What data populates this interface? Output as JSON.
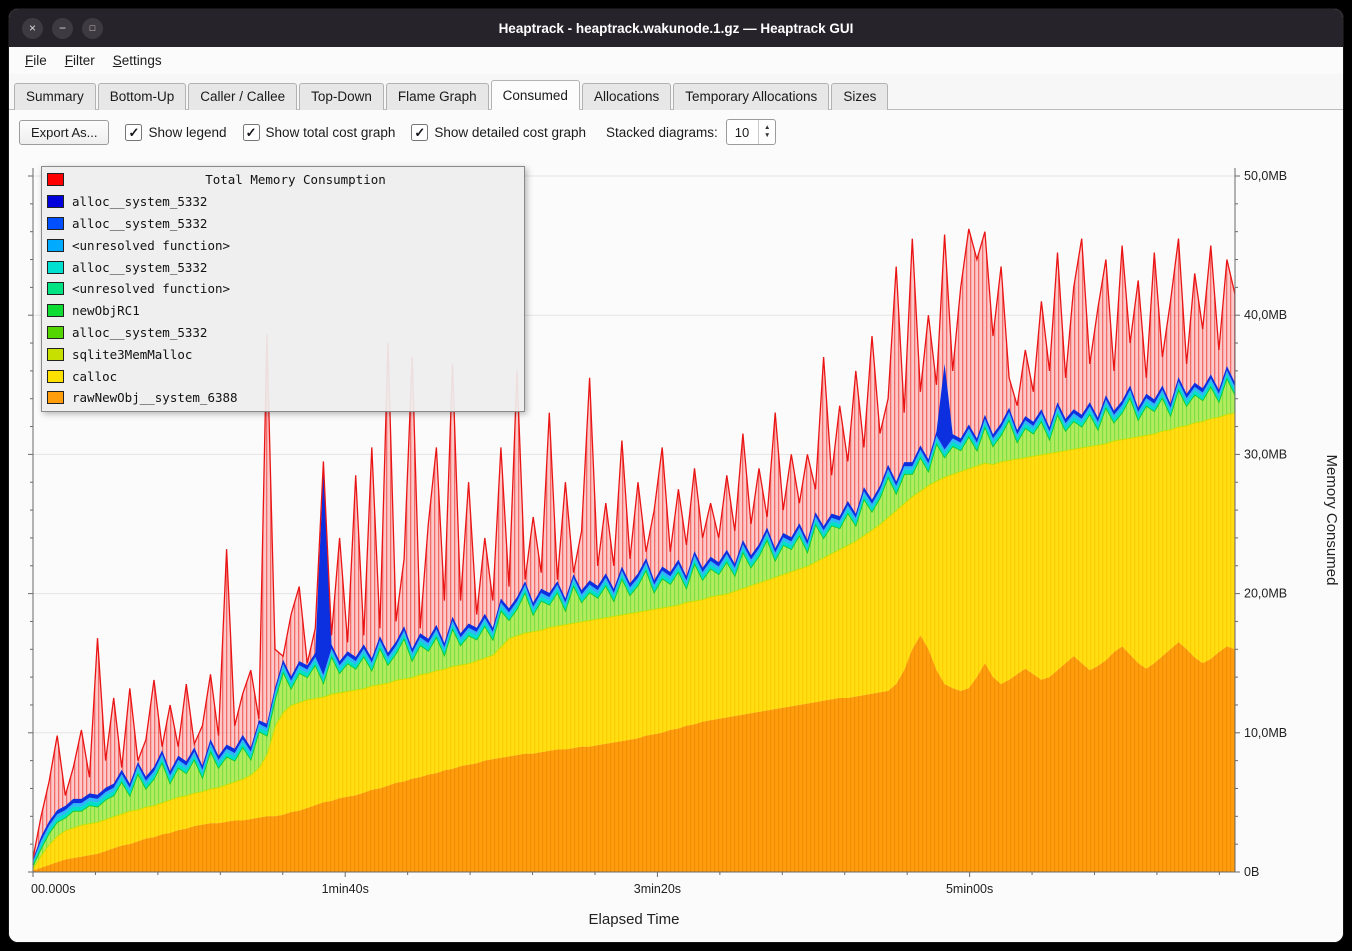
{
  "window": {
    "title": "Heaptrack - heaptrack.wakunode.1.gz — Heaptrack GUI",
    "controls": {
      "close": "×",
      "minimize": "−",
      "maximize": "□"
    }
  },
  "menubar": {
    "items": [
      {
        "label": "File"
      },
      {
        "label": "Filter"
      },
      {
        "label": "Settings"
      }
    ]
  },
  "tabs": {
    "items": [
      "Summary",
      "Bottom-Up",
      "Caller / Callee",
      "Top-Down",
      "Flame Graph",
      "Consumed",
      "Allocations",
      "Temporary Allocations",
      "Sizes"
    ],
    "active": "Consumed"
  },
  "toolbar": {
    "export_label": "Export As...",
    "checkboxes": [
      {
        "label": "Show legend",
        "checked": true
      },
      {
        "label": "Show total cost graph",
        "checked": true
      },
      {
        "label": "Show detailed cost graph",
        "checked": true
      }
    ],
    "stacked_label": "Stacked diagrams:",
    "stacked_value": "10"
  },
  "chart_data": {
    "type": "area",
    "legend_title": "Total Memory Consumption",
    "xlabel": "Elapsed Time",
    "ylabel": "Memory Consumed",
    "ylim": [
      0,
      50
    ],
    "duration_s": 385,
    "x_ticks": [
      {
        "t": 0,
        "label": "00.000s"
      },
      {
        "t": 100,
        "label": "1min40s"
      },
      {
        "t": 200,
        "label": "3min20s"
      },
      {
        "t": 300,
        "label": "5min00s"
      }
    ],
    "y_ticks": [
      {
        "v": 0,
        "label": "0B"
      },
      {
        "v": 10,
        "label": "10,0MB"
      },
      {
        "v": 20,
        "label": "20,0MB"
      },
      {
        "v": 30,
        "label": "30,0MB"
      },
      {
        "v": 40,
        "label": "40,0MB"
      },
      {
        "v": 50,
        "label": "50,0MB"
      }
    ],
    "legend": [
      {
        "label": "alloc__system_5332",
        "color": "#0000dc"
      },
      {
        "label": "alloc__system_5332",
        "color": "#0050ff"
      },
      {
        "label": "<unresolved function>",
        "color": "#00aaff"
      },
      {
        "label": "alloc__system_5332",
        "color": "#00e0d0"
      },
      {
        "label": "<unresolved function>",
        "color": "#00e382"
      },
      {
        "label": "newObjRC1",
        "color": "#0fdc32"
      },
      {
        "label": "alloc__system_5332",
        "color": "#52d500"
      },
      {
        "label": "sqlite3MemMalloc",
        "color": "#c8e000"
      },
      {
        "label": "calloc",
        "color": "#ffe100"
      },
      {
        "label": "rawNewObj__system_6388",
        "color": "#ff9d0c"
      }
    ],
    "colors": {
      "total": "#ff0000",
      "orange": "#ff9d0c",
      "yellow": "#ffdf0f",
      "sqlite_line": "#c8e000",
      "green": "#b2ec5e",
      "green_line": "#12c822",
      "cyan": "#00dfc8",
      "lightblue": "#2bb7ff",
      "blue": "#0c2fe0"
    },
    "blue_spikes": [
      {
        "i": 36,
        "v": 29.0
      },
      {
        "i": 113,
        "v": 36.5
      }
    ],
    "series": [
      {
        "name": "rawNewObj__system_6388",
        "role": "orange_top",
        "values": [
          0.1,
          0.3,
          0.5,
          0.7,
          0.9,
          1.0,
          1.1,
          1.2,
          1.3,
          1.5,
          1.7,
          1.9,
          2.0,
          2.2,
          2.4,
          2.5,
          2.7,
          2.8,
          3.0,
          3.1,
          3.3,
          3.4,
          3.5,
          3.5,
          3.6,
          3.7,
          3.7,
          3.8,
          3.9,
          4.0,
          4.0,
          4.1,
          4.3,
          4.4,
          4.6,
          4.8,
          5.0,
          5.1,
          5.3,
          5.4,
          5.5,
          5.7,
          5.9,
          6.0,
          6.2,
          6.4,
          6.5,
          6.7,
          6.8,
          7.0,
          7.1,
          7.3,
          7.4,
          7.6,
          7.7,
          7.8,
          8.0,
          8.1,
          8.2,
          8.3,
          8.4,
          8.5,
          8.5,
          8.6,
          8.7,
          8.8,
          8.8,
          8.9,
          9.0,
          9.0,
          9.1,
          9.2,
          9.3,
          9.4,
          9.5,
          9.6,
          9.8,
          9.9,
          10.0,
          10.2,
          10.3,
          10.5,
          10.6,
          10.8,
          10.9,
          11.0,
          11.1,
          11.2,
          11.3,
          11.4,
          11.5,
          11.6,
          11.7,
          11.8,
          11.9,
          12.0,
          12.1,
          12.2,
          12.3,
          12.4,
          12.5,
          12.5,
          12.6,
          12.7,
          12.8,
          12.9,
          13.0,
          13.5,
          14.5,
          16.0,
          17.0,
          16.0,
          14.5,
          13.5,
          13.2,
          13.0,
          13.2,
          14.0,
          15.0,
          14.0,
          13.5,
          13.8,
          14.2,
          14.6,
          14.2,
          13.8,
          14.0,
          14.5,
          15.0,
          15.5,
          15.0,
          14.5,
          14.8,
          15.2,
          15.8,
          16.2,
          15.6,
          15.0,
          14.6,
          15.0,
          15.5,
          16.0,
          16.5,
          16.0,
          15.4,
          15.0,
          15.3,
          15.8,
          16.2,
          16.0
        ]
      },
      {
        "name": "calloc",
        "role": "yellow_top",
        "values": [
          0.3,
          1.2,
          2.0,
          2.6,
          3.0,
          3.2,
          3.4,
          3.5,
          3.6,
          3.8,
          4.0,
          4.2,
          4.4,
          4.5,
          4.7,
          4.8,
          5.0,
          5.2,
          5.4,
          5.5,
          5.7,
          5.8,
          6.0,
          6.1,
          6.3,
          6.5,
          6.7,
          7.0,
          7.5,
          8.5,
          10.5,
          11.5,
          12.0,
          12.2,
          12.4,
          12.5,
          12.6,
          12.8,
          12.9,
          13.0,
          13.1,
          13.2,
          13.4,
          13.5,
          13.6,
          13.8,
          13.9,
          14.0,
          14.2,
          14.3,
          14.5,
          14.6,
          14.8,
          14.9,
          15.0,
          15.2,
          15.4,
          15.6,
          16.2,
          16.8,
          17.0,
          17.2,
          17.3,
          17.4,
          17.6,
          17.7,
          17.8,
          17.9,
          18.0,
          18.1,
          18.2,
          18.3,
          18.4,
          18.5,
          18.6,
          18.7,
          18.8,
          18.9,
          19.0,
          19.1,
          19.2,
          19.4,
          19.5,
          19.6,
          19.8,
          19.9,
          20.0,
          20.2,
          20.4,
          20.6,
          20.8,
          21.0,
          21.2,
          21.4,
          21.6,
          21.8,
          22.0,
          22.3,
          22.6,
          22.9,
          23.2,
          23.5,
          23.8,
          24.2,
          24.6,
          25.0,
          25.5,
          26.0,
          26.5,
          27.0,
          27.4,
          27.8,
          28.1,
          28.4,
          28.6,
          28.8,
          29.0,
          29.2,
          29.4,
          29.3,
          29.5,
          29.6,
          29.7,
          29.8,
          29.9,
          30.0,
          30.1,
          30.2,
          30.3,
          30.4,
          30.5,
          30.6,
          30.7,
          30.8,
          31.0,
          31.1,
          31.2,
          31.3,
          31.4,
          31.5,
          31.7,
          31.8,
          32.0,
          32.1,
          32.3,
          32.4,
          32.6,
          32.7,
          32.9,
          33.0
        ]
      },
      {
        "name": "newObjRC1 + green allocators (band thickness)",
        "role": "green_band",
        "values": [
          0.2,
          0.5,
          0.8,
          1.0,
          0.9,
          1.2,
          1.0,
          1.3,
          1.1,
          1.4,
          1.5,
          2.3,
          1.1,
          2.6,
          1.3,
          1.9,
          2.9,
          1.2,
          2.1,
          1.6,
          2.4,
          1.0,
          2.7,
          1.4,
          2.0,
          1.5,
          2.3,
          1.1,
          2.6,
          1.3,
          1.9,
          2.9,
          1.2,
          2.1,
          1.6,
          2.4,
          1.0,
          2.7,
          1.4,
          2.0,
          1.5,
          2.3,
          1.1,
          2.6,
          1.3,
          1.9,
          2.9,
          1.2,
          2.1,
          1.6,
          2.4,
          1.0,
          2.7,
          1.4,
          2.0,
          1.5,
          2.3,
          1.1,
          2.6,
          1.3,
          1.9,
          2.9,
          1.2,
          2.1,
          1.6,
          2.4,
          1.0,
          2.7,
          1.4,
          2.0,
          1.5,
          2.3,
          1.1,
          2.6,
          1.3,
          1.9,
          2.9,
          1.2,
          2.1,
          1.6,
          2.4,
          1.0,
          2.7,
          1.4,
          2.0,
          1.5,
          2.3,
          1.1,
          2.6,
          1.3,
          1.9,
          2.9,
          1.2,
          2.1,
          1.6,
          2.4,
          1.0,
          2.7,
          1.4,
          2.0,
          1.5,
          2.3,
          1.1,
          2.6,
          1.3,
          1.9,
          2.9,
          1.2,
          2.1,
          1.6,
          2.4,
          1.0,
          2.7,
          1.4,
          2.0,
          1.5,
          2.3,
          1.1,
          2.6,
          1.3,
          1.9,
          2.9,
          1.2,
          2.1,
          1.6,
          2.4,
          1.0,
          2.7,
          1.4,
          2.0,
          1.5,
          2.3,
          1.1,
          2.6,
          1.3,
          1.9,
          2.9,
          1.2,
          2.1,
          1.6,
          2.4,
          1.0,
          2.7,
          1.4,
          2.0,
          1.5,
          2.3,
          1.1,
          2.6,
          1.3
        ]
      },
      {
        "name": "Total Memory Consumption",
        "role": "total",
        "values": [
          1.0,
          4.0,
          6.5,
          9.8,
          5.5,
          7.5,
          10.2,
          6.8,
          16.8,
          8.0,
          12.5,
          7.5,
          13.2,
          8.0,
          9.5,
          13.8,
          9.0,
          12.0,
          9.0,
          13.5,
          9.2,
          10.5,
          14.2,
          9.8,
          23.2,
          10.5,
          12.8,
          14.5,
          11.0,
          38.6,
          16.0,
          15.5,
          18.5,
          20.5,
          15.0,
          17.5,
          29.5,
          17.0,
          24.0,
          16.5,
          28.5,
          17.0,
          30.5,
          17.5,
          38.0,
          18.0,
          22.5,
          37.0,
          17.5,
          25.0,
          30.5,
          19.5,
          36.5,
          19.5,
          28.0,
          18.5,
          24.0,
          19.5,
          30.5,
          20.5,
          36.0,
          21.0,
          25.5,
          21.5,
          33.0,
          21.0,
          28.0,
          21.5,
          24.5,
          35.5,
          22.0,
          26.5,
          22.0,
          31.0,
          22.5,
          28.0,
          23.0,
          26.0,
          30.5,
          23.0,
          27.5,
          23.5,
          29.0,
          24.0,
          26.5,
          24.0,
          28.5,
          24.5,
          31.5,
          25.0,
          29.0,
          25.5,
          33.0,
          26.0,
          30.0,
          26.5,
          30.0,
          27.5,
          37.0,
          28.5,
          33.5,
          29.5,
          36.0,
          30.5,
          38.5,
          31.5,
          34.0,
          43.5,
          33.0,
          45.5,
          34.5,
          40.0,
          35.0,
          45.8,
          36.0,
          42.0,
          46.2,
          44.0,
          46.0,
          38.5,
          43.5,
          35.5,
          33.5,
          37.5,
          34.5,
          41.0,
          36.0,
          44.5,
          35.5,
          42.0,
          45.5,
          36.5,
          40.5,
          44.0,
          36.0,
          45.0,
          38.0,
          42.5,
          35.5,
          44.5,
          37.0,
          41.0,
          45.5,
          36.5,
          43.0,
          39.0,
          45.0,
          37.5,
          44.0,
          41.5
        ]
      }
    ]
  }
}
